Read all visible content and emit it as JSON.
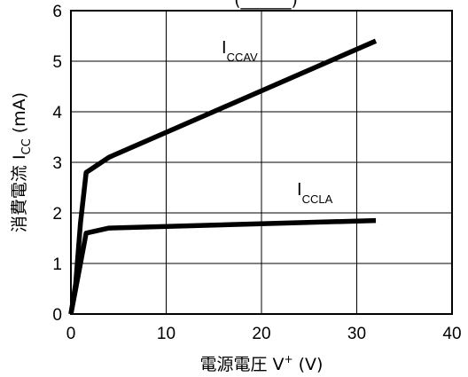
{
  "chart_data": {
    "type": "line",
    "title": "(______)",
    "xlabel": {
      "text": "電源電圧  V",
      "superscript": "+",
      "unit": "  (V)"
    },
    "ylabel": {
      "text": "消費電流  I",
      "subscript": "CC",
      "unit": " (mA)"
    },
    "xlim": [
      0,
      40
    ],
    "ylim": [
      0,
      6
    ],
    "xticks": [
      0,
      10,
      20,
      30,
      40
    ],
    "yticks": [
      0,
      1,
      2,
      3,
      4,
      5,
      6
    ],
    "grid": true,
    "series": [
      {
        "name_main": "I",
        "name_sub": "CCAV",
        "color": "#000000",
        "x": [
          0,
          0.5,
          1,
          1.6,
          4,
          32
        ],
        "y": [
          0,
          0.6,
          1.8,
          2.8,
          3.1,
          5.4
        ]
      },
      {
        "name_main": "I",
        "name_sub": "CCLA",
        "color": "#000000",
        "x": [
          0,
          0.6,
          1.6,
          4,
          32
        ],
        "y": [
          0,
          0.6,
          1.6,
          1.7,
          1.85
        ]
      }
    ]
  }
}
